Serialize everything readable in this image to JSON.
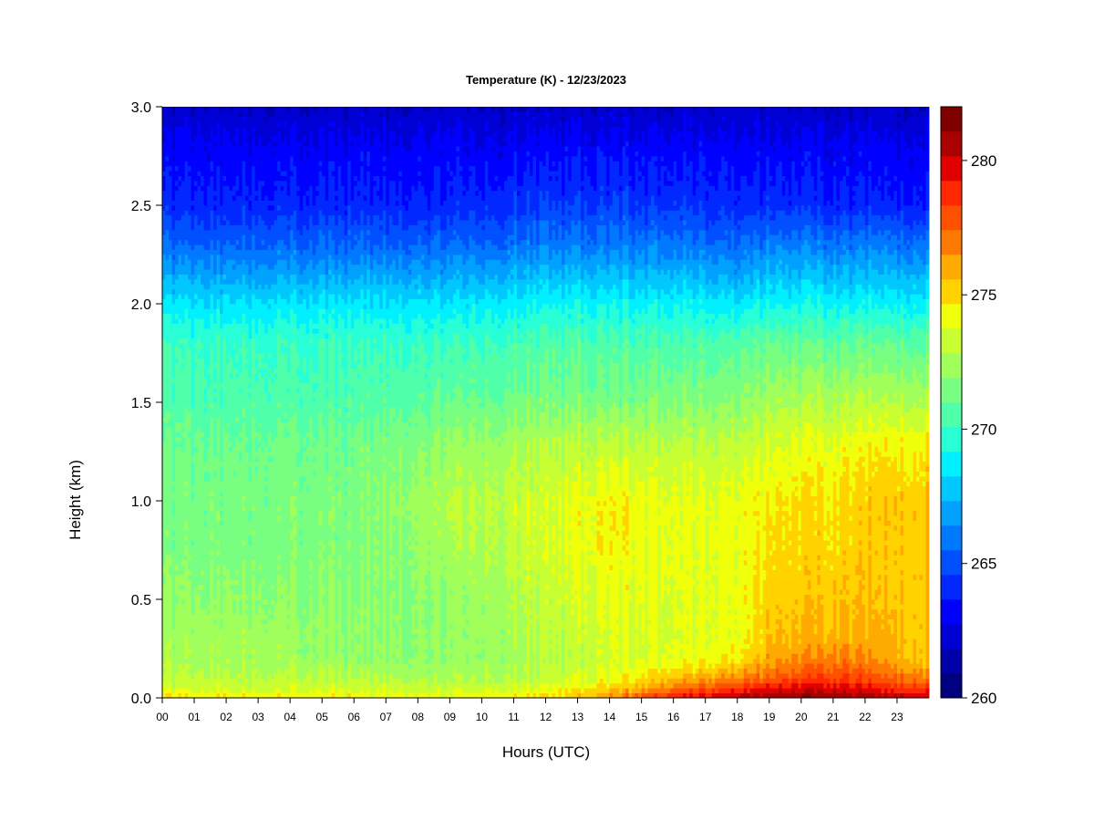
{
  "chart_data": {
    "type": "heatmap",
    "title": "Temperature (K) - 12/23/2023",
    "xlabel": "Hours (UTC)",
    "ylabel": "Height (km)",
    "xlim": [
      0,
      24
    ],
    "ylim": [
      0,
      3.0
    ],
    "x_ticks": [
      "00",
      "01",
      "02",
      "03",
      "04",
      "05",
      "06",
      "07",
      "08",
      "09",
      "10",
      "11",
      "12",
      "13",
      "14",
      "15",
      "16",
      "17",
      "18",
      "19",
      "20",
      "21",
      "22",
      "23"
    ],
    "y_ticks": [
      "0.0",
      "0.5",
      "1.0",
      "1.5",
      "2.0",
      "2.5",
      "3.0"
    ],
    "colorbar": {
      "min": 260,
      "max": 282,
      "step": 1,
      "ticks": [
        260,
        265,
        270,
        275,
        280
      ],
      "colors": [
        "#000080",
        "#0000aa",
        "#0000d4",
        "#0000ff",
        "#0028ff",
        "#0050ff",
        "#0078ff",
        "#00a0ff",
        "#00c8ff",
        "#00f0ff",
        "#28ffd6",
        "#50ffaa",
        "#78ff82",
        "#a0ff5a",
        "#c8ff32",
        "#f0ff0a",
        "#ffd200",
        "#ffaa00",
        "#ff7800",
        "#ff5000",
        "#ff2800",
        "#e00000",
        "#aa0000",
        "#800000"
      ]
    },
    "profile_heights_km": [
      0.0,
      0.05,
      0.1,
      0.2,
      0.3,
      0.5,
      0.8,
      1.0,
      1.3,
      1.5,
      1.8,
      2.0,
      2.3,
      2.5,
      2.8,
      3.0
    ],
    "profiles": [
      {
        "hour": 0,
        "temps_K": [
          275.0,
          273.5,
          273.0,
          272.5,
          272.5,
          272.0,
          271.5,
          271.5,
          271.0,
          270.5,
          270.0,
          268.5,
          265.5,
          264.0,
          263.0,
          262.0
        ]
      },
      {
        "hour": 3,
        "temps_K": [
          274.5,
          273.5,
          273.0,
          272.5,
          272.5,
          272.0,
          271.5,
          271.5,
          271.2,
          270.5,
          270.0,
          268.5,
          265.5,
          264.0,
          263.0,
          262.0
        ]
      },
      {
        "hour": 6,
        "temps_K": [
          274.5,
          273.5,
          273.0,
          272.0,
          272.0,
          271.8,
          271.5,
          271.5,
          271.2,
          270.5,
          270.0,
          268.5,
          265.5,
          264.0,
          263.0,
          262.0
        ]
      },
      {
        "hour": 9,
        "temps_K": [
          274.0,
          273.2,
          272.5,
          272.0,
          272.0,
          272.0,
          272.5,
          272.8,
          272.0,
          271.0,
          270.0,
          268.5,
          265.5,
          264.0,
          263.0,
          262.0
        ]
      },
      {
        "hour": 12,
        "temps_K": [
          275.0,
          273.8,
          273.2,
          272.8,
          273.0,
          273.2,
          273.5,
          273.5,
          272.8,
          271.5,
          270.5,
          269.0,
          266.0,
          264.5,
          263.2,
          262.0
        ]
      },
      {
        "hour": 14,
        "temps_K": [
          276.5,
          275.0,
          274.0,
          273.5,
          273.5,
          274.0,
          274.5,
          274.5,
          273.0,
          271.5,
          270.5,
          269.0,
          266.0,
          264.5,
          263.2,
          262.0
        ]
      },
      {
        "hour": 16,
        "temps_K": [
          279.5,
          277.0,
          275.5,
          274.0,
          273.8,
          273.8,
          274.0,
          274.0,
          273.0,
          271.8,
          270.5,
          269.0,
          266.0,
          264.5,
          263.2,
          262.0
        ]
      },
      {
        "hour": 18,
        "temps_K": [
          280.5,
          278.5,
          276.5,
          274.5,
          274.0,
          274.0,
          274.0,
          274.0,
          273.0,
          271.8,
          270.5,
          268.5,
          265.5,
          264.0,
          263.0,
          262.0
        ]
      },
      {
        "hour": 19,
        "temps_K": [
          281.0,
          279.5,
          277.5,
          276.0,
          275.5,
          275.0,
          274.8,
          274.5,
          273.5,
          272.5,
          271.0,
          269.0,
          266.0,
          264.2,
          263.0,
          262.0
        ]
      },
      {
        "hour": 21,
        "temps_K": [
          281.0,
          280.0,
          278.5,
          277.0,
          276.0,
          275.5,
          275.0,
          275.0,
          274.0,
          272.8,
          271.0,
          269.0,
          266.0,
          264.0,
          263.0,
          262.0
        ]
      },
      {
        "hour": 23,
        "temps_K": [
          280.5,
          279.0,
          277.5,
          276.0,
          275.8,
          275.5,
          275.5,
          275.5,
          274.5,
          273.0,
          271.0,
          269.0,
          266.0,
          264.0,
          263.0,
          262.0
        ]
      },
      {
        "hour": 24,
        "temps_K": [
          280.0,
          278.5,
          277.0,
          275.5,
          275.5,
          275.5,
          275.5,
          275.5,
          274.5,
          273.0,
          271.0,
          269.0,
          266.0,
          264.0,
          263.0,
          262.0
        ]
      }
    ]
  }
}
